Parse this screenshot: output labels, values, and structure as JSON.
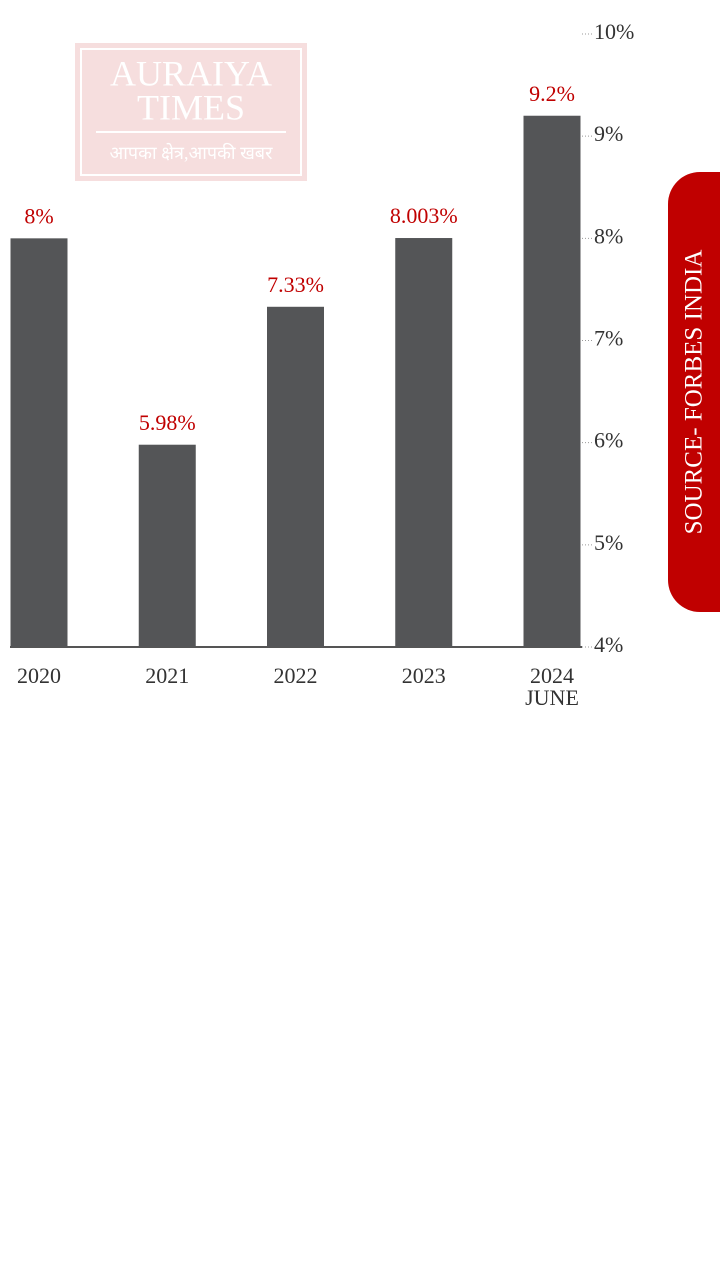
{
  "chart_data": {
    "type": "bar",
    "categories": [
      "2020",
      "2021",
      "2022",
      "2023",
      "2024 JUNE"
    ],
    "values": [
      8,
      5.98,
      7.33,
      8.003,
      9.2
    ],
    "value_labels": [
      "8%",
      "5.98%",
      "7.33%",
      "8.003%",
      "9.2%"
    ],
    "color": "#545557",
    "label_color": "#c00000",
    "ylim": [
      4,
      10
    ],
    "yticks": [
      {
        "value": 4,
        "label": "4%"
      },
      {
        "value": 5,
        "label": "5%"
      },
      {
        "value": 6,
        "label": "6%"
      },
      {
        "value": 7,
        "label": "7%"
      },
      {
        "value": 8,
        "label": "8%"
      },
      {
        "value": 9,
        "label": "9%"
      },
      {
        "value": 10,
        "label": "10%"
      }
    ],
    "y_axis_side": "right"
  },
  "source": "SOURCE- FORBES INDIA",
  "watermark": {
    "line1": "AURAIYA",
    "line2": "TIMES",
    "tagline": "आपका क्षेत्र,आपकी खबर"
  }
}
